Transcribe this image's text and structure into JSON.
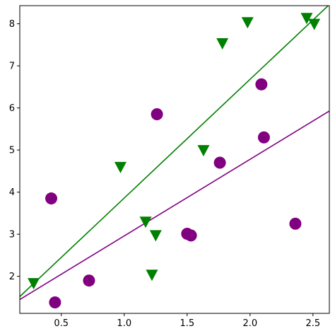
{
  "chart_data": {
    "type": "scatter",
    "title": "",
    "xlabel": "",
    "ylabel": "",
    "xlim": [
      0.17,
      2.63
    ],
    "ylim": [
      1.12,
      8.43
    ],
    "xticks": [
      0.5,
      1.0,
      1.5,
      2.0,
      2.5
    ],
    "xtick_labels": [
      "0.5",
      "1.0",
      "1.5",
      "2.0",
      "2.5"
    ],
    "yticks": [
      2,
      3,
      4,
      5,
      6,
      7,
      8
    ],
    "ytick_labels": [
      "2",
      "3",
      "4",
      "5",
      "6",
      "7",
      "8"
    ],
    "grid": false,
    "series": [
      {
        "marker": "circle",
        "color": "#800080",
        "points": [
          [
            0.42,
            3.85
          ],
          [
            0.45,
            1.38
          ],
          [
            0.72,
            1.9
          ],
          [
            1.26,
            5.85
          ],
          [
            1.5,
            3.01
          ],
          [
            1.53,
            2.97
          ],
          [
            1.76,
            4.7
          ],
          [
            2.09,
            6.56
          ],
          [
            2.11,
            5.3
          ],
          [
            2.36,
            3.25
          ]
        ],
        "fit_line": {
          "slope": 1.82,
          "intercept": 1.14
        }
      },
      {
        "marker": "triangle-down",
        "color": "#008000",
        "points": [
          [
            0.28,
            1.84
          ],
          [
            0.97,
            4.6
          ],
          [
            1.17,
            3.3
          ],
          [
            1.22,
            2.04
          ],
          [
            1.25,
            2.98
          ],
          [
            1.63,
            5.0
          ],
          [
            1.78,
            7.54
          ],
          [
            1.98,
            8.04
          ],
          [
            2.45,
            8.14
          ],
          [
            2.51,
            8.0
          ]
        ],
        "fit_line": {
          "slope": 2.82,
          "intercept": 1.04
        }
      }
    ]
  }
}
